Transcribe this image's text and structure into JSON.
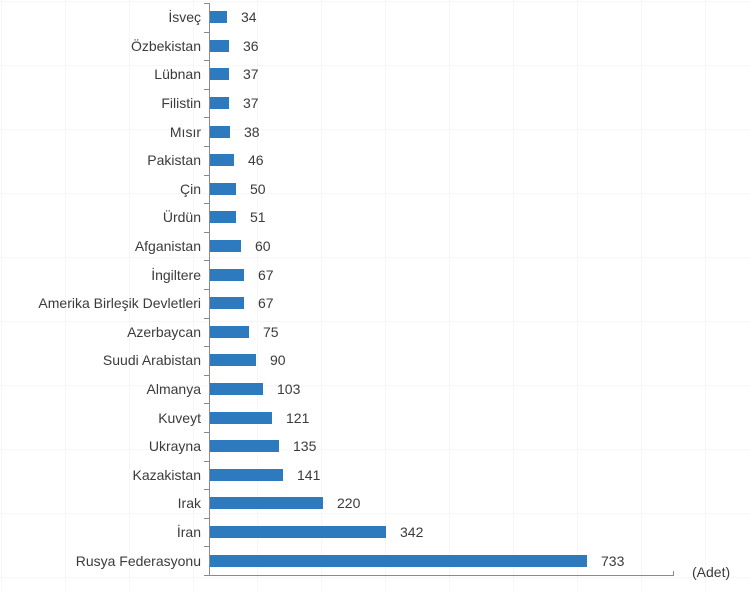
{
  "chart_data": {
    "type": "bar",
    "orientation": "horizontal",
    "title": "",
    "unit_label": "(Adet)",
    "categories": [
      "İsveç",
      "Özbekistan",
      "Lübnan",
      "Filistin",
      "Mısır",
      "Pakistan",
      "Çin",
      "Ürdün",
      "Afganistan",
      "İngiltere",
      "Amerika Birleşik Devletleri",
      "Azerbaycan",
      "Suudi Arabistan",
      "Almanya",
      "Kuveyt",
      "Ukrayna",
      "Kazakistan",
      "Irak",
      "İran",
      "Rusya Federasyonu"
    ],
    "values": [
      34,
      36,
      37,
      37,
      38,
      46,
      50,
      51,
      60,
      67,
      67,
      75,
      90,
      103,
      121,
      135,
      141,
      220,
      342,
      733
    ],
    "xlim": [
      0,
      900
    ],
    "grid": false,
    "legend": "none",
    "value_labels": "end-of-bar"
  },
  "colors": {
    "bar": "#2D7BBE",
    "axis": "#8a8a8a",
    "text": "#3b3b3b"
  }
}
